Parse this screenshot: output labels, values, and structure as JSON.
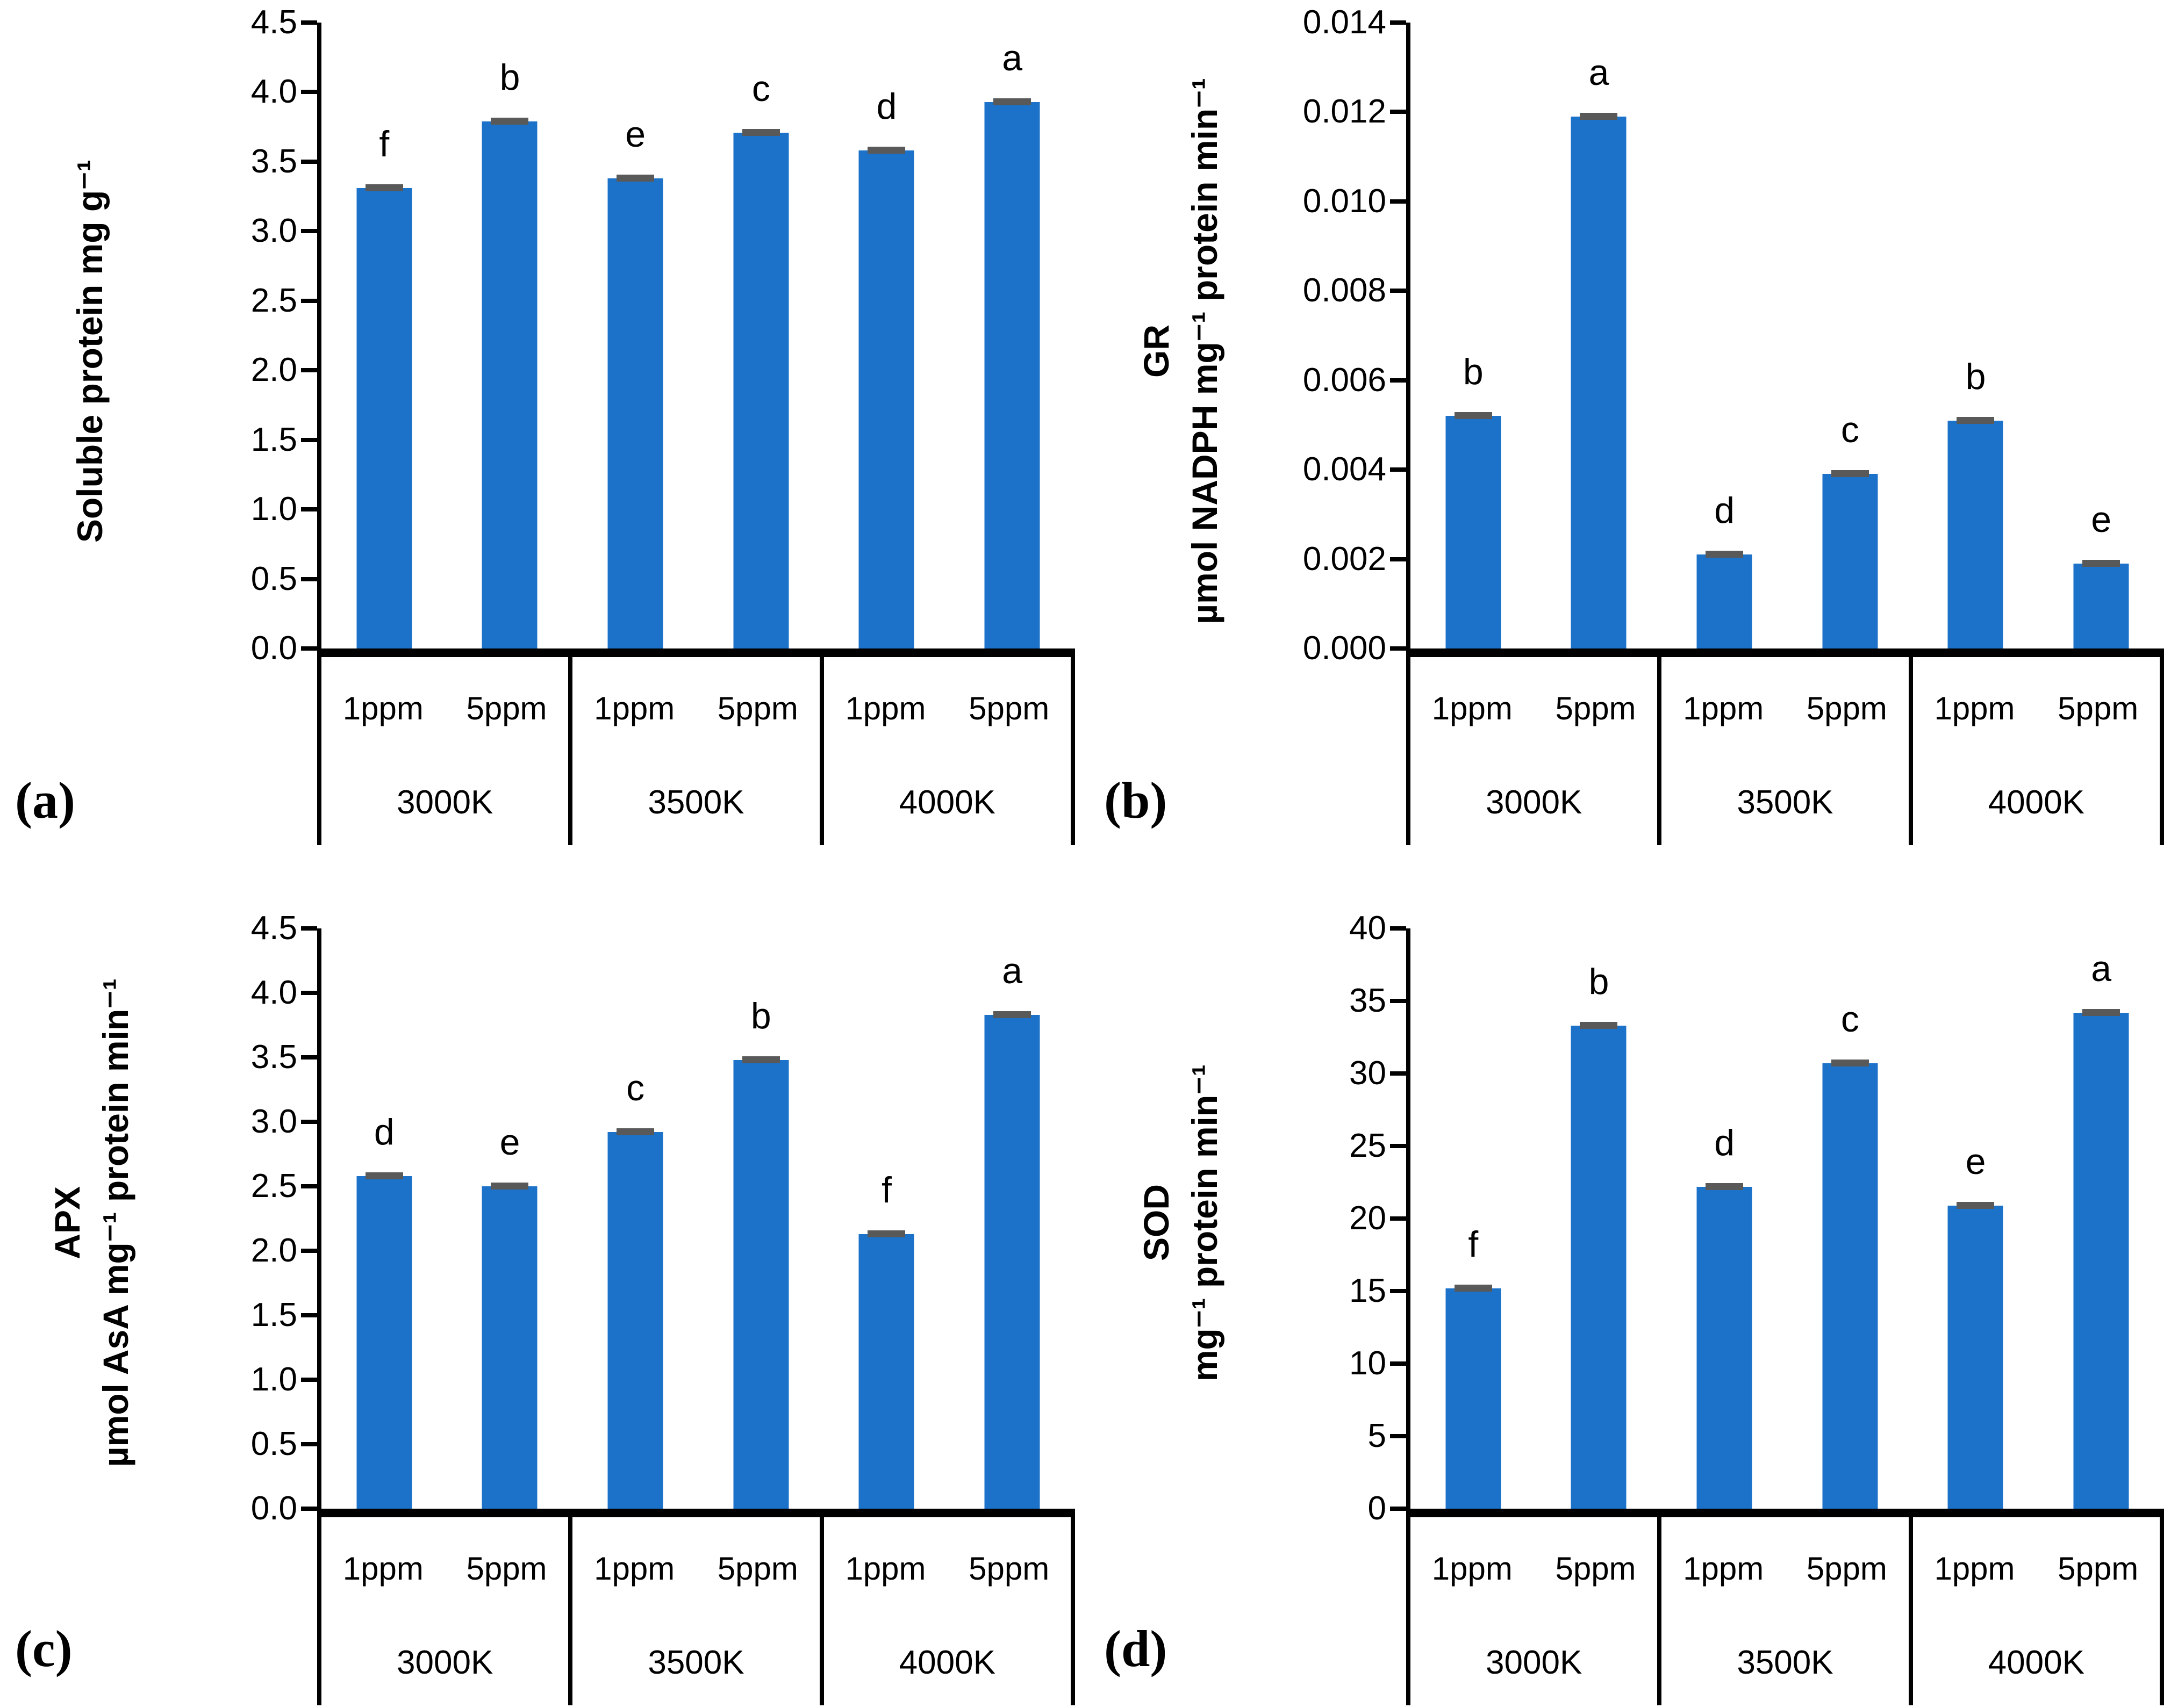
{
  "colors": {
    "bar": "#1B72C8",
    "error_cap": "#595959",
    "axis": "#000000"
  },
  "chart_data": [
    {
      "type": "bar",
      "panel": "(a)",
      "ylabel_lines": [
        "Soluble protein mg g⁻¹"
      ],
      "ylim": [
        0,
        4.5
      ],
      "ytick_labels": [
        "0.0",
        "0.5",
        "1.0",
        "1.5",
        "2.0",
        "2.5",
        "3.0",
        "3.5",
        "4.0",
        "4.5"
      ],
      "group_labels": [
        "3000K",
        "3500K",
        "4000K"
      ],
      "x_labels": [
        "1ppm",
        "5ppm",
        "1ppm",
        "5ppm",
        "1ppm",
        "5ppm"
      ],
      "values": [
        3.31,
        3.79,
        3.38,
        3.71,
        3.58,
        3.93
      ],
      "sig_letters": [
        "f",
        "b",
        "e",
        "c",
        "d",
        "a"
      ],
      "error_caps": true,
      "legend": "none",
      "grid": "off"
    },
    {
      "type": "bar",
      "panel": "(b)",
      "ylabel_lines": [
        "GR",
        "µmol NADPH mg⁻¹ protein min⁻¹"
      ],
      "ylim": [
        0,
        0.014
      ],
      "ytick_labels": [
        "0.000",
        "0.002",
        "0.004",
        "0.006",
        "0.008",
        "0.010",
        "0.012",
        "0.014"
      ],
      "group_labels": [
        "3000K",
        "3500K",
        "4000K"
      ],
      "x_labels": [
        "1ppm",
        "5ppm",
        "1ppm",
        "5ppm",
        "1ppm",
        "5ppm"
      ],
      "values": [
        0.0052,
        0.0119,
        0.0021,
        0.0039,
        0.0051,
        0.0019
      ],
      "sig_letters": [
        "b",
        "a",
        "d",
        "c",
        "b",
        "e"
      ],
      "error_caps": true,
      "legend": "none",
      "grid": "off"
    },
    {
      "type": "bar",
      "panel": "(c)",
      "ylabel_lines": [
        "APX",
        "µmol AsA mg⁻¹ protein min⁻¹"
      ],
      "ylim": [
        0,
        4.5
      ],
      "ytick_labels": [
        "0.0",
        "0.5",
        "1.0",
        "1.5",
        "2.0",
        "2.5",
        "3.0",
        "3.5",
        "4.0",
        "4.5"
      ],
      "group_labels": [
        "3000K",
        "3500K",
        "4000K"
      ],
      "x_labels": [
        "1ppm",
        "5ppm",
        "1ppm",
        "5ppm",
        "1ppm",
        "5ppm"
      ],
      "values": [
        2.58,
        2.5,
        2.92,
        3.48,
        2.13,
        3.83
      ],
      "sig_letters": [
        "d",
        "e",
        "c",
        "b",
        "f",
        "a"
      ],
      "error_caps": true,
      "legend": "none",
      "grid": "off"
    },
    {
      "type": "bar",
      "panel": "(d)",
      "ylabel_lines": [
        "SOD",
        "mg⁻¹ protein min⁻¹"
      ],
      "ylim": [
        0,
        40
      ],
      "ytick_labels": [
        "0",
        "5",
        "10",
        "15",
        "20",
        "25",
        "30",
        "35",
        "40"
      ],
      "group_labels": [
        "3000K",
        "3500K",
        "4000K"
      ],
      "x_labels": [
        "1ppm",
        "5ppm",
        "1ppm",
        "5ppm",
        "1ppm",
        "5ppm"
      ],
      "values": [
        15.2,
        33.3,
        22.2,
        30.7,
        20.9,
        34.2
      ],
      "sig_letters": [
        "f",
        "b",
        "d",
        "c",
        "e",
        "a"
      ],
      "error_caps": true,
      "legend": "none",
      "grid": "off"
    }
  ]
}
